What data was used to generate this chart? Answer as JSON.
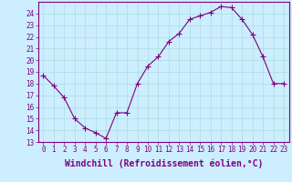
{
  "x": [
    0,
    1,
    2,
    3,
    4,
    5,
    6,
    7,
    8,
    9,
    10,
    11,
    12,
    13,
    14,
    15,
    16,
    17,
    18,
    19,
    20,
    21,
    22,
    23
  ],
  "y": [
    18.7,
    17.8,
    16.8,
    15.0,
    14.2,
    13.8,
    13.3,
    15.5,
    15.5,
    18.0,
    19.5,
    20.3,
    21.6,
    22.3,
    23.5,
    23.8,
    24.1,
    24.6,
    24.5,
    23.5,
    22.2,
    20.3,
    18.0,
    18.0
  ],
  "line_color": "#800080",
  "marker": "+",
  "marker_size": 4,
  "bg_color": "#cceeff",
  "grid_color": "#aadddd",
  "xlabel": "Windchill (Refroidissement éolien,°C)",
  "xlim": [
    -0.5,
    23.5
  ],
  "ylim": [
    13,
    25
  ],
  "yticks": [
    13,
    14,
    15,
    16,
    17,
    18,
    19,
    20,
    21,
    22,
    23,
    24
  ],
  "xticks": [
    0,
    1,
    2,
    3,
    4,
    5,
    6,
    7,
    8,
    9,
    10,
    11,
    12,
    13,
    14,
    15,
    16,
    17,
    18,
    19,
    20,
    21,
    22,
    23
  ],
  "tick_fontsize": 5.5,
  "xlabel_fontsize": 7.0,
  "line_color_hex": "#800080",
  "spine_color": "#800080"
}
